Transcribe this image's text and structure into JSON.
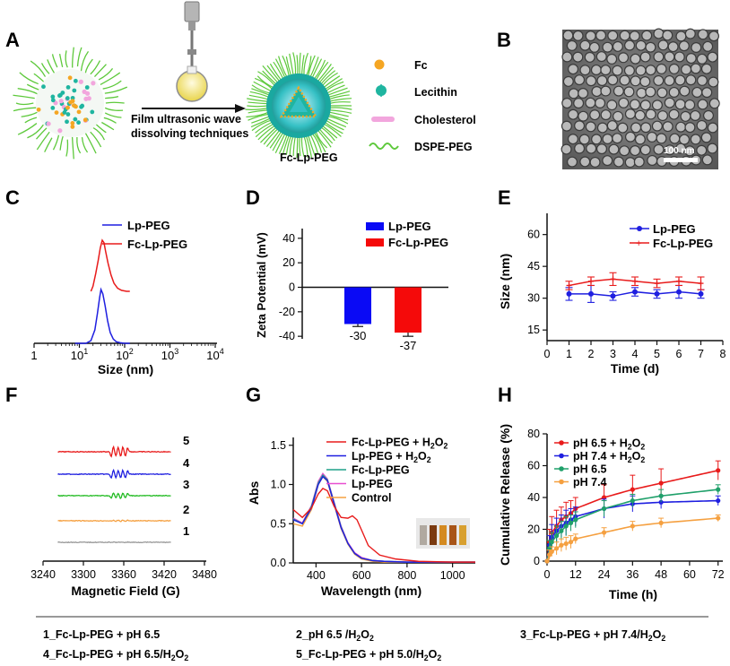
{
  "panel_letters": [
    "A",
    "B",
    "C",
    "D",
    "E",
    "F",
    "G",
    "H"
  ],
  "schematic": {
    "process_line1": "Film ultrasonic wave",
    "process_line2": "dissolving techniques",
    "product_label": "Fc-Lp-PEG",
    "legend": [
      {
        "label": "Fc",
        "icon": "fc-dot-icon",
        "color": "#f5a623"
      },
      {
        "label": "Lecithin",
        "icon": "lecithin-icon",
        "color": "#1fb5a0"
      },
      {
        "label": "Cholesterol",
        "icon": "cholesterol-icon",
        "color": "#f2a6dd"
      },
      {
        "label": "DSPE-PEG",
        "icon": "peg-chain-icon",
        "color": "#5ec93c"
      }
    ]
  },
  "tem": {
    "scale_bar": "100 nm"
  },
  "chart_data": [
    {
      "panel": "C",
      "type": "line",
      "xlabel": "Size (nm)",
      "x_ticks": [
        {
          "v": 1,
          "b": "1",
          "e": ""
        },
        {
          "v": 10,
          "b": "10",
          "e": "1"
        },
        {
          "v": 100,
          "b": "10",
          "e": "2"
        },
        {
          "v": 1000,
          "b": "10",
          "e": "3"
        },
        {
          "v": 10000,
          "b": "10",
          "e": "4"
        }
      ],
      "x_scale": "log",
      "series": [
        {
          "name": "Lp-PEG",
          "color": "#1f1fe0",
          "x": [
            8,
            14,
            18,
            22,
            25,
            28,
            30,
            33,
            37,
            42,
            48,
            56,
            65,
            80,
            100,
            130
          ],
          "y": [
            0.0,
            0.0,
            0.05,
            0.25,
            0.55,
            0.85,
            1.0,
            0.92,
            0.7,
            0.42,
            0.2,
            0.08,
            0.03,
            0.01,
            0.0,
            0.0
          ]
        },
        {
          "name": "Fc-Lp-PEG",
          "color": "#e81b1b",
          "x": [
            18,
            20,
            23,
            26,
            29,
            32,
            35,
            38,
            43,
            50,
            58,
            70,
            85,
            110,
            130
          ],
          "y": [
            0.0,
            0.1,
            0.35,
            0.6,
            0.85,
            1.0,
            0.95,
            0.78,
            0.55,
            0.32,
            0.16,
            0.06,
            0.02,
            0.0,
            0.0
          ]
        }
      ]
    },
    {
      "panel": "D",
      "type": "bar",
      "ylabel": "Zeta Potential (mV)",
      "ylim": [
        -45,
        45
      ],
      "y_ticks": [
        -40,
        -20,
        0,
        20,
        40
      ],
      "series": [
        {
          "name": "Lp-PEG",
          "color": "#0a0af5",
          "value": -30,
          "error": 2,
          "label": "-30"
        },
        {
          "name": "Fc-Lp-PEG",
          "color": "#f50a0a",
          "value": -37,
          "error": 3,
          "label": "-37"
        }
      ]
    },
    {
      "panel": "E",
      "type": "line",
      "xlabel": "Time (d)",
      "ylabel": "Size (nm)",
      "xlim": [
        0,
        8
      ],
      "ylim": [
        10,
        70
      ],
      "x_ticks": [
        0,
        1,
        2,
        3,
        4,
        5,
        6,
        7,
        8
      ],
      "y_ticks": [
        15,
        30,
        45,
        60
      ],
      "series": [
        {
          "name": "Lp-PEG",
          "color": "#1f1fe0",
          "x": [
            1,
            2,
            3,
            4,
            5,
            6,
            7
          ],
          "y": [
            32,
            32,
            31,
            33,
            32,
            33,
            32
          ],
          "err": [
            3,
            4,
            2,
            2,
            2,
            3,
            2
          ]
        },
        {
          "name": "Fc-Lp-PEG",
          "color": "#e81b1b",
          "x": [
            1,
            2,
            3,
            4,
            5,
            6,
            7
          ],
          "y": [
            36,
            38,
            39,
            38,
            37,
            38,
            37
          ],
          "err": [
            2,
            2,
            3,
            2,
            2,
            2,
            3
          ]
        }
      ]
    },
    {
      "panel": "F",
      "type": "line",
      "xlabel": "Magnetic Field (G)",
      "xlim": [
        3240,
        3480
      ],
      "x_ticks": [
        3240,
        3300,
        3360,
        3420,
        3480
      ],
      "series": [
        {
          "name": "5",
          "color": "#e81b1b",
          "offset": 5,
          "amp": 1.0
        },
        {
          "name": "4",
          "color": "#1f1fe0",
          "offset": 4,
          "amp": 0.8
        },
        {
          "name": "3",
          "color": "#22bb22",
          "offset": 3,
          "amp": 0.55
        },
        {
          "name": "2",
          "color": "#f5a040",
          "offset": 2,
          "amp": 0.12
        },
        {
          "name": "1",
          "color": "#999999",
          "offset": 1,
          "amp": 0.04
        }
      ],
      "peaks": [
        3343,
        3350,
        3357,
        3364
      ]
    },
    {
      "panel": "G",
      "type": "line",
      "xlabel": "Wavelength (nm)",
      "ylabel": "Abs",
      "xlim": [
        300,
        1100
      ],
      "ylim": [
        0,
        1.6
      ],
      "x_ticks": [
        400,
        600,
        800,
        1000
      ],
      "y_ticks": [
        0.0,
        0.5,
        1.0,
        1.5
      ],
      "series": [
        {
          "name": "Fc-Lp-PEG + H2O2",
          "base": "Fc-Lp-PEG + H",
          "sub": "2",
          "mid": "O",
          "sub2": "2",
          "color": "#e81b1b",
          "x": [
            300,
            340,
            380,
            410,
            430,
            450,
            480,
            510,
            540,
            560,
            580,
            600,
            630,
            680,
            750,
            850,
            1000,
            1100
          ],
          "y": [
            0.68,
            0.58,
            0.7,
            0.88,
            0.95,
            0.92,
            0.72,
            0.58,
            0.57,
            0.6,
            0.55,
            0.42,
            0.22,
            0.1,
            0.05,
            0.02,
            0.01,
            0.01
          ]
        },
        {
          "name": "Lp-PEG + H2O2",
          "base": "Lp-PEG + H",
          "sub": "2",
          "mid": "O",
          "sub2": "2",
          "color": "#1f1fe0",
          "x": [
            300,
            340,
            380,
            410,
            430,
            450,
            480,
            510,
            540,
            570,
            600,
            650,
            700,
            800,
            1000,
            1100
          ],
          "y": [
            0.55,
            0.5,
            0.7,
            1.0,
            1.1,
            1.05,
            0.75,
            0.45,
            0.25,
            0.12,
            0.06,
            0.03,
            0.02,
            0.01,
            0.01,
            0.01
          ]
        },
        {
          "name": "Fc-Lp-PEG",
          "color": "#1fa088",
          "x": [
            300,
            340,
            380,
            410,
            430,
            450,
            480,
            510,
            540,
            570,
            600,
            650,
            700,
            800,
            1000,
            1100
          ],
          "y": [
            0.56,
            0.5,
            0.72,
            1.02,
            1.12,
            1.06,
            0.76,
            0.46,
            0.25,
            0.12,
            0.06,
            0.03,
            0.02,
            0.01,
            0.01,
            0.01
          ]
        },
        {
          "name": "Lp-PEG",
          "color": "#e84fd0",
          "x": [
            300,
            340,
            380,
            410,
            430,
            450,
            480,
            510,
            540,
            570,
            600,
            650,
            700,
            800,
            1000,
            1100
          ],
          "y": [
            0.57,
            0.51,
            0.73,
            1.04,
            1.14,
            1.07,
            0.77,
            0.47,
            0.26,
            0.13,
            0.07,
            0.03,
            0.02,
            0.01,
            0.01,
            0.01
          ]
        },
        {
          "name": "Control",
          "color": "#f5a040",
          "x": [
            300,
            340,
            380,
            410,
            430,
            450,
            480,
            510,
            540,
            570,
            600,
            650,
            700,
            800,
            1000,
            1100
          ],
          "y": [
            0.5,
            0.47,
            0.68,
            1.0,
            1.1,
            1.04,
            0.74,
            0.44,
            0.24,
            0.11,
            0.05,
            0.02,
            0.01,
            0.01,
            0.01,
            0.01
          ]
        }
      ]
    },
    {
      "panel": "H",
      "type": "line",
      "xlabel": "Time (h)",
      "ylabel": "Cumulative Release (%)",
      "xlim": [
        0,
        74
      ],
      "ylim": [
        0,
        80
      ],
      "x_ticks": [
        0,
        12,
        24,
        36,
        48,
        60,
        72
      ],
      "y_ticks": [
        0,
        20,
        40,
        60,
        80
      ],
      "series": [
        {
          "name": "pH 6.5 + H2O2",
          "base": "pH 6.5 + H",
          "sub": "2",
          "mid": "O",
          "sub2": "2",
          "color": "#e81b1b",
          "x": [
            0,
            1,
            2,
            4,
            6,
            8,
            10,
            12,
            24,
            36,
            48,
            72
          ],
          "y": [
            0,
            12,
            18,
            22,
            26,
            28,
            30,
            33,
            40,
            45,
            49,
            57
          ],
          "err": [
            0,
            8,
            10,
            10,
            8,
            9,
            8,
            7,
            8,
            9,
            9,
            6
          ]
        },
        {
          "name": "pH 7.4 + H2O2",
          "base": "pH 7.4 + H",
          "sub": "2",
          "mid": "O",
          "sub2": "2",
          "color": "#1f1fe0",
          "x": [
            0,
            1,
            2,
            4,
            6,
            8,
            10,
            12,
            24,
            36,
            48,
            72
          ],
          "y": [
            0,
            10,
            15,
            19,
            22,
            24,
            26,
            28,
            33,
            36,
            37,
            38
          ],
          "err": [
            0,
            6,
            8,
            8,
            7,
            8,
            7,
            6,
            6,
            5,
            4,
            3
          ]
        },
        {
          "name": "pH 6.5",
          "color": "#1fa06a",
          "x": [
            0,
            1,
            2,
            4,
            6,
            8,
            10,
            12,
            24,
            36,
            48,
            72
          ],
          "y": [
            0,
            8,
            12,
            16,
            19,
            22,
            24,
            26,
            33,
            38,
            41,
            45
          ],
          "err": [
            0,
            5,
            6,
            6,
            6,
            6,
            5,
            5,
            5,
            4,
            4,
            3
          ]
        },
        {
          "name": "pH 7.4",
          "color": "#f5a040",
          "x": [
            0,
            1,
            2,
            4,
            6,
            8,
            10,
            12,
            24,
            36,
            48,
            72
          ],
          "y": [
            0,
            4,
            6,
            8,
            10,
            11,
            12,
            14,
            18,
            22,
            24,
            27
          ],
          "err": [
            0,
            3,
            3,
            4,
            4,
            4,
            4,
            3,
            3,
            3,
            3,
            2
          ]
        }
      ]
    }
  ],
  "footer_legend": [
    {
      "text": "1_Fc-Lp-PEG + pH 6.5"
    },
    {
      "text": "2_pH 6.5 /H",
      "sub": "2",
      "mid": "O",
      "sub2": "2"
    },
    {
      "text": "3_Fc-Lp-PEG + pH 7.4/H",
      "sub": "2",
      "mid": "O",
      "sub2": "2"
    },
    {
      "text": "4_Fc-Lp-PEG + pH 6.5/H",
      "sub": "2",
      "mid": "O",
      "sub2": "2"
    },
    {
      "text": "5_Fc-Lp-PEG + pH 5.0/H",
      "sub": "2",
      "mid": "O",
      "sub2": "2"
    }
  ]
}
